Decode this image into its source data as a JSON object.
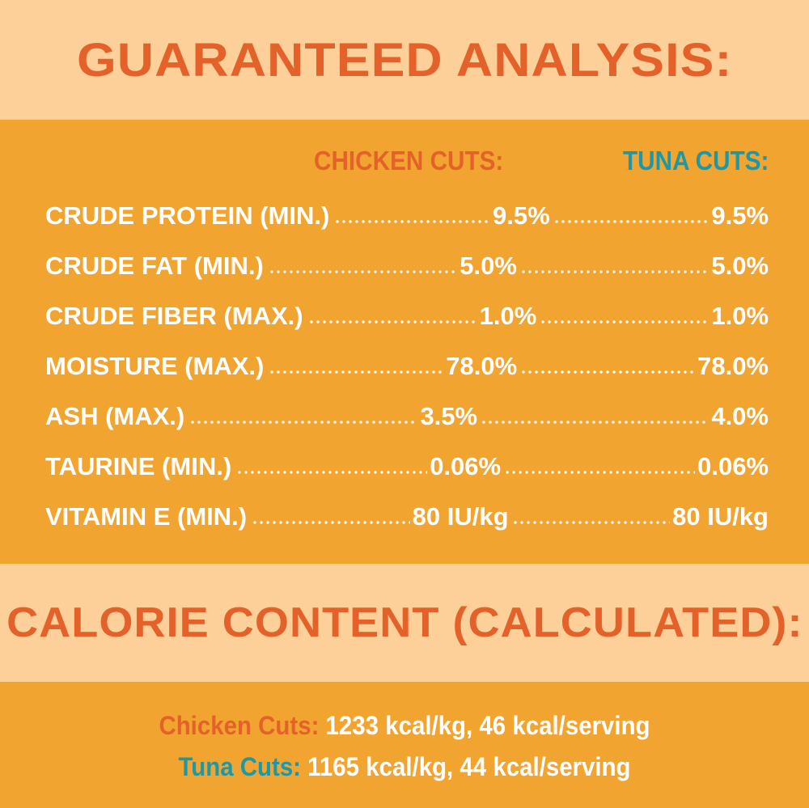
{
  "analysis": {
    "title": "GUARANTEED ANALYSIS:",
    "columns": {
      "chicken": "CHICKEN CUTS:",
      "tuna": "TUNA CUTS:"
    },
    "rows": [
      {
        "name": "CRUDE PROTEIN (MIN.)",
        "chicken": "9.5%",
        "tuna": "9.5%"
      },
      {
        "name": "CRUDE FAT (MIN.)",
        "chicken": "5.0%",
        "tuna": "5.0%"
      },
      {
        "name": "CRUDE FIBER (MAX.)",
        "chicken": "1.0%",
        "tuna": "1.0%"
      },
      {
        "name": "MOISTURE (MAX.)",
        "chicken": "78.0%",
        "tuna": "78.0%"
      },
      {
        "name": "ASH (MAX.)",
        "chicken": "3.5%",
        "tuna": "4.0%"
      },
      {
        "name": "TAURINE (MIN.)",
        "chicken": "0.06%",
        "tuna": "0.06%"
      },
      {
        "name": "VITAMIN E (MIN.)",
        "chicken": "80 IU/kg",
        "tuna": "80 IU/kg"
      }
    ]
  },
  "calorie": {
    "title": "CALORIE CONTENT (CALCULATED):",
    "chicken": {
      "label": "Chicken Cuts:",
      "value": "1233 kcal/kg, 46 kcal/serving"
    },
    "tuna": {
      "label": "Tuna Cuts:",
      "value": "1165 kcal/kg, 44 kcal/serving"
    }
  },
  "colors": {
    "light_band": "#FDCF99",
    "orange_band": "#F2A431",
    "heading_orange": "#E4622A",
    "tuna_teal": "#1E97A6",
    "text_white": "#FFFFFF"
  }
}
